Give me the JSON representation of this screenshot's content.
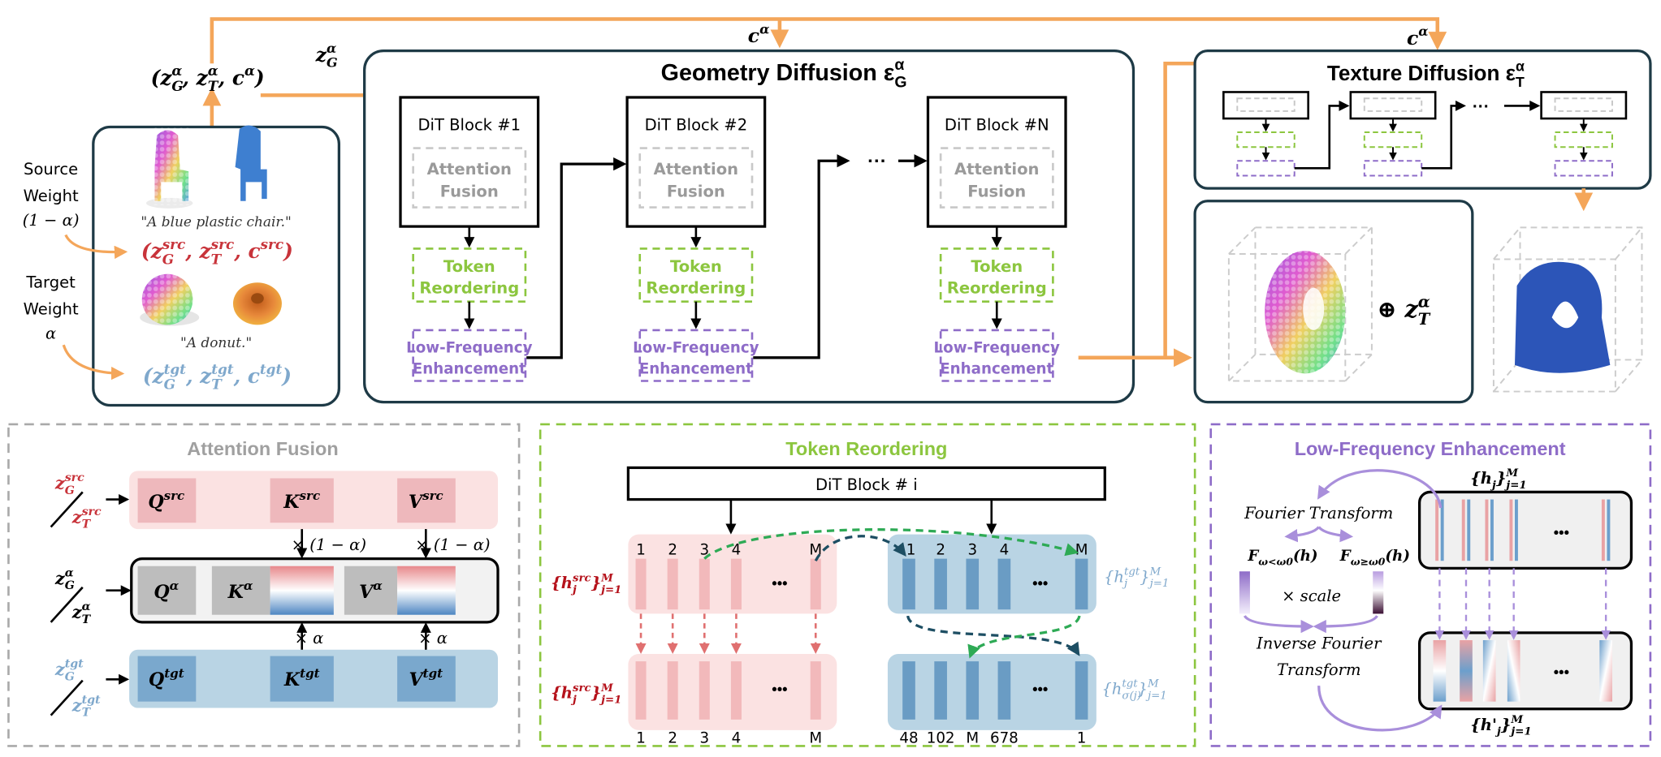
{
  "colors": {
    "orange": "#f4a65a",
    "source_red": "#c8333a",
    "target_blue": "#7fa8cc",
    "green": "#8cc63f",
    "purple": "#8e6cc8",
    "gray": "#a9a9a9",
    "frame": "#1e3a46"
  },
  "top": {
    "latent_tuple": "(z_{G}^{α}, z_{T}^{α}, c^{α})",
    "zg_label": "z_{G}^{α}",
    "c_label_geometry": "c^{α}",
    "c_label_texture": "c^{α}"
  },
  "inputs": {
    "source_label": [
      "Source",
      "Weight",
      "(1 − α)"
    ],
    "target_label": [
      "Target",
      "Weight",
      "α"
    ],
    "source_prompt": "\"A blue plastic chair.\"",
    "target_prompt": "\"A donut.\"",
    "source_tuple": "(z_{G}^{src}, z_{T}^{src}, c^{src})",
    "target_tuple": "(z_{G}^{tgt}, z_{T}^{tgt}, c^{tgt})"
  },
  "geometry": {
    "title": "Geometry Diffusion ε_{G}^{α}",
    "blocks": [
      {
        "label": "DiT Block #1"
      },
      {
        "label": "DiT Block #2"
      },
      {
        "label": "DiT Block #N"
      }
    ],
    "attention": [
      "Attention",
      "Fusion"
    ],
    "token": [
      "Token",
      "Reordering"
    ],
    "lfe": [
      "Low-Frequency",
      "Enhancement"
    ],
    "ellipsis": "···"
  },
  "texture": {
    "title": "Texture Diffusion ε_{T}^{α}",
    "ellipsis": "···"
  },
  "output": {
    "plus_label": "⊕ z_{T}^{α}"
  },
  "attention_fusion": {
    "title": "Attention Fusion",
    "src_row": [
      "Q^{src}",
      "K^{src}",
      "V^{src}"
    ],
    "mix_row": [
      "Q^{α}",
      "K^{α}",
      "V^{α}"
    ],
    "tgt_row": [
      "Q^{tgt}",
      "K^{tgt}",
      "V^{tgt}"
    ],
    "src_inputs": [
      "z_{G}^{src}",
      "z_{T}^{src}"
    ],
    "mix_inputs": [
      "z_{G}^{α}",
      "z_{T}^{α}"
    ],
    "tgt_inputs": [
      "z_{G}^{tgt}",
      "z_{T}^{tgt}"
    ],
    "weight_src": "× (1 − α)",
    "weight_tgt": "× α"
  },
  "token_reordering": {
    "title": "Token Reordering",
    "block_label": "DiT Block # i",
    "src_labels_top": [
      "1",
      "2",
      "3",
      "4",
      "M"
    ],
    "tgt_labels_top": [
      "1",
      "2",
      "3",
      "4",
      "M"
    ],
    "src_labels_bottom": [
      "1",
      "2",
      "3",
      "4",
      "M"
    ],
    "tgt_labels_bottom": [
      "48",
      "102",
      "M",
      "678",
      "1"
    ],
    "src_set": "{h_{j}^{src}}_{j=1}^{M}",
    "tgt_set": "{h_{j}^{tgt}}_{j=1}^{M}",
    "tgt_perm_set": "{h_{σ(j)}^{tgt}}_{j=1}^{M}",
    "ellipsis": "•••"
  },
  "lfe": {
    "title": "Low-Frequency Enhancement",
    "input_set": "{h_{j}}_{j=1}^{M}",
    "output_set": "{h'_{j}}_{j=1}^{M}",
    "fourier": "Fourier Transform",
    "low": "F_{ω<ω0}(h)",
    "high": "F_{ω≥ω0}(h)",
    "scale": "× scale",
    "inverse": [
      "Inverse Fourier",
      "Transform"
    ],
    "ellipsis": "•••"
  }
}
